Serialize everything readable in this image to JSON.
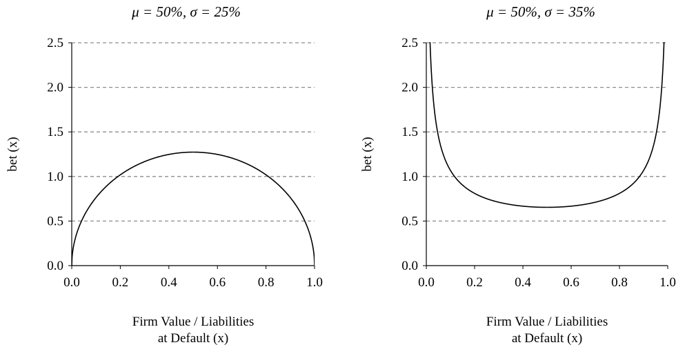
{
  "chart_data": [
    {
      "type": "line",
      "title": "μ = 50%, σ = 25%",
      "xlabel_lines": [
        "Firm Value / Liabilities",
        "at Default (x)"
      ],
      "ylabel": "bet (x)",
      "xlim": [
        0,
        1
      ],
      "ylim": [
        0,
        2.5
      ],
      "x_ticks": [
        "0.0",
        "0.2",
        "0.4",
        "0.6",
        "0.8",
        "1.0"
      ],
      "y_ticks": [
        "0.0",
        "0.5",
        "1.0",
        "1.5",
        "2.0",
        "2.5"
      ],
      "grid": "horizontal dashed",
      "line_color": "#000000",
      "grid_color": "#8c8c8c",
      "beta_params": {
        "a": 1.5,
        "b": 1.5
      },
      "series": [
        {
          "x": [
            0.0,
            0.01,
            0.05,
            0.1,
            0.2,
            0.3,
            0.4,
            0.5,
            0.6,
            0.7,
            0.8,
            0.9,
            0.95,
            0.99,
            1.0
          ],
          "y": [
            0.0,
            0.27,
            0.56,
            0.76,
            1.02,
            1.17,
            1.25,
            1.27,
            1.25,
            1.17,
            1.02,
            0.76,
            0.56,
            0.27,
            0.0
          ]
        }
      ]
    },
    {
      "type": "line",
      "title": "μ = 50%, σ = 35%",
      "xlabel_lines": [
        "Firm Value / Liabilities",
        "at Default (x)"
      ],
      "ylabel": "bet (x)",
      "xlim": [
        0,
        1
      ],
      "ylim": [
        0,
        2.5
      ],
      "x_ticks": [
        "0.0",
        "0.2",
        "0.4",
        "0.6",
        "0.8",
        "1.0"
      ],
      "y_ticks": [
        "0.0",
        "0.5",
        "1.0",
        "1.5",
        "2.0",
        "2.5"
      ],
      "grid": "horizontal dashed",
      "line_color": "#000000",
      "grid_color": "#8c8c8c",
      "beta_params": {
        "a": 0.52,
        "b": 0.52
      },
      "series": [
        {
          "x": [
            0.02,
            0.05,
            0.1,
            0.2,
            0.3,
            0.4,
            0.5,
            0.6,
            0.7,
            0.8,
            0.9,
            0.95,
            0.98
          ],
          "y": [
            2.5,
            1.55,
            1.1,
            0.82,
            0.72,
            0.67,
            0.66,
            0.67,
            0.72,
            0.82,
            1.1,
            1.55,
            2.5
          ]
        }
      ]
    }
  ]
}
